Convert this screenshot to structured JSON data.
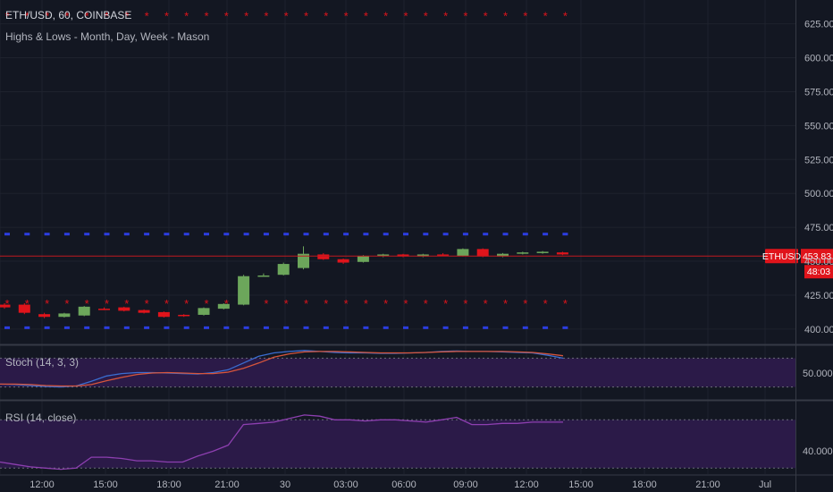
{
  "header": {
    "symbol_line": "ETH/USD, 60, COINBASE",
    "indicator_line": "Highs & Lows - Month, Day, Week - Mason"
  },
  "colors": {
    "background": "#131722",
    "grid": "#1e222d",
    "up": "#6ca65b",
    "down": "#e0141b",
    "star_red": "#e0141b",
    "dash_blue": "#2c3de0",
    "stoch_k": "#3a6dd1",
    "stoch_d": "#d6553c",
    "rsi_line": "#8d3fb0",
    "osc_band": "#2b1a48",
    "price_line": "#c0181e",
    "axis_text": "#b2b5be",
    "separator": "#363a45"
  },
  "chart_data": [
    {
      "type": "candlestick",
      "name": "ETH/USD, 60, COINBASE",
      "price_axis_ticks": [
        625,
        600,
        575,
        550,
        525,
        500,
        475,
        450,
        425,
        400
      ],
      "price_axis_labels": [
        "625.000",
        "600.000",
        "575.000",
        "550.000",
        "525.000",
        "500.000",
        "475.000",
        "450.000",
        "425.000",
        "400.000"
      ],
      "ylim": [
        392,
        632
      ],
      "time_axis_labels": [
        "12:00",
        "15:00",
        "18:00",
        "21:00",
        "30",
        "03:00",
        "06:00",
        "09:00",
        "12:00",
        "15:00",
        "18:00",
        "21:00",
        "Jul"
      ],
      "last_price_tag": {
        "symbol": "ETHUSD",
        "price": "453.83",
        "countdown": "48:03",
        "value": 453.83
      },
      "candles": [
        {
          "o": 418.0,
          "c": 416.0,
          "h": 419.0,
          "l": 415.0
        },
        {
          "o": 418.0,
          "c": 412.0,
          "h": 419.0,
          "l": 411.0
        },
        {
          "o": 411.0,
          "c": 409.0,
          "h": 412.0,
          "l": 408.0
        },
        {
          "o": 409.0,
          "c": 411.5,
          "h": 412.0,
          "l": 408.5
        },
        {
          "o": 410.0,
          "c": 416.5,
          "h": 417.0,
          "l": 409.5
        },
        {
          "o": 415.0,
          "c": 414.5,
          "h": 416.0,
          "l": 414.0
        },
        {
          "o": 416.0,
          "c": 413.5,
          "h": 416.5,
          "l": 413.0
        },
        {
          "o": 414.0,
          "c": 412.0,
          "h": 414.5,
          "l": 411.5
        },
        {
          "o": 412.5,
          "c": 409.0,
          "h": 413.0,
          "l": 408.5
        },
        {
          "o": 410.5,
          "c": 409.5,
          "h": 411.0,
          "l": 409.0
        },
        {
          "o": 410.5,
          "c": 415.5,
          "h": 416.0,
          "l": 410.0
        },
        {
          "o": 415.0,
          "c": 418.5,
          "h": 419.0,
          "l": 414.5
        },
        {
          "o": 418.0,
          "c": 439.0,
          "h": 440.0,
          "l": 417.5
        },
        {
          "o": 439.0,
          "c": 439.5,
          "h": 441.0,
          "l": 438.5
        },
        {
          "o": 440.0,
          "c": 448.0,
          "h": 449.0,
          "l": 439.5
        },
        {
          "o": 445.0,
          "c": 455.5,
          "h": 461.0,
          "l": 444.0
        },
        {
          "o": 455.0,
          "c": 451.5,
          "h": 456.0,
          "l": 451.0
        },
        {
          "o": 451.5,
          "c": 449.0,
          "h": 452.0,
          "l": 448.0
        },
        {
          "o": 449.5,
          "c": 454.0,
          "h": 454.5,
          "l": 449.0
        },
        {
          "o": 454.0,
          "c": 455.0,
          "h": 455.5,
          "l": 453.0
        },
        {
          "o": 455.0,
          "c": 453.5,
          "h": 455.5,
          "l": 453.0
        },
        {
          "o": 453.5,
          "c": 455.0,
          "h": 455.5,
          "l": 453.0
        },
        {
          "o": 455.0,
          "c": 454.5,
          "h": 456.0,
          "l": 454.0
        },
        {
          "o": 454.0,
          "c": 459.0,
          "h": 459.5,
          "l": 453.5
        },
        {
          "o": 459.0,
          "c": 453.5,
          "h": 459.5,
          "l": 453.0
        },
        {
          "o": 453.5,
          "c": 455.5,
          "h": 456.0,
          "l": 453.0
        },
        {
          "o": 455.5,
          "c": 456.5,
          "h": 457.0,
          "l": 455.0
        },
        {
          "o": 456.0,
          "c": 457.0,
          "h": 457.5,
          "l": 455.5
        },
        {
          "o": 456.5,
          "c": 455.0,
          "h": 457.0,
          "l": 454.5
        }
      ],
      "reference_levels": [
        {
          "style": "red-star",
          "value": 631
        },
        {
          "style": "blue-dash",
          "value": 470
        },
        {
          "style": "red-star",
          "value": 419
        },
        {
          "style": "blue-dash",
          "value": 401
        }
      ]
    },
    {
      "type": "line",
      "name": "Stoch (14, 3, 3)",
      "axis_label": "50.0000",
      "ylim": [
        -5,
        105
      ],
      "band": [
        20,
        80
      ],
      "series": [
        {
          "name": "K",
          "values": [
            26,
            25,
            23,
            21,
            20,
            22,
            32,
            43,
            48,
            50,
            50,
            49,
            48,
            47,
            50,
            56,
            70,
            84,
            91,
            94,
            96,
            94,
            92,
            91,
            91,
            90,
            90,
            91,
            92,
            94,
            95,
            94,
            94,
            93,
            92,
            91,
            86,
            80
          ]
        },
        {
          "name": "D",
          "values": [
            26,
            26,
            25,
            23,
            22,
            22,
            25,
            33,
            40,
            46,
            49,
            50,
            49,
            48,
            48,
            51,
            59,
            70,
            82,
            89,
            93,
            94,
            94,
            93,
            92,
            91,
            91,
            91,
            92,
            93,
            94,
            94,
            94,
            94,
            93,
            92,
            89,
            85
          ]
        }
      ]
    },
    {
      "type": "line",
      "name": "RSI (14, close)",
      "axis_label": "40.0000",
      "ylim": [
        25,
        85
      ],
      "band": [
        30,
        70
      ],
      "series": [
        {
          "name": "RSI",
          "values": [
            35,
            33,
            31,
            30,
            29,
            30,
            39,
            39,
            38,
            36,
            36,
            35,
            35,
            40,
            44,
            49,
            66,
            67,
            68,
            71,
            74,
            73,
            70,
            70,
            69,
            70,
            70,
            69,
            68,
            70,
            72,
            66,
            66,
            67,
            67,
            68,
            68,
            68
          ]
        }
      ]
    }
  ]
}
